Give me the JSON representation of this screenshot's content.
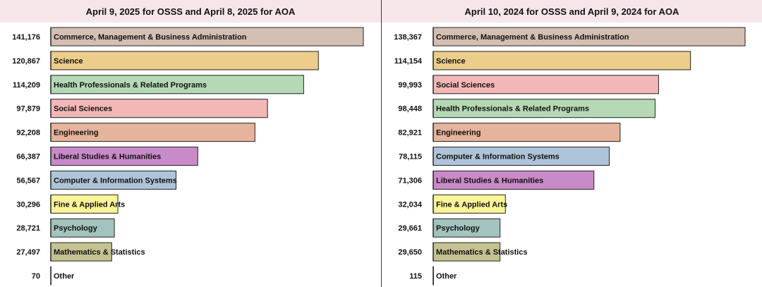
{
  "chart_data": [
    {
      "type": "bar",
      "orientation": "horizontal",
      "title": "April 9, 2025 for OSSS and April 8, 2025 for AOA",
      "categories": [
        "Commerce, Management & Business Administration",
        "Science",
        "Health Professionals & Related Programs",
        "Social Sciences",
        "Engineering",
        "Liberal Studies & Humanities",
        "Computer & Information Systems",
        "Fine & Applied Arts",
        "Psychology",
        "Mathematics & Statistics",
        "Other"
      ],
      "values": [
        141176,
        120867,
        114209,
        97879,
        92208,
        66387,
        56567,
        30296,
        28721,
        27497,
        70
      ],
      "value_labels": [
        "141,176",
        "120,867",
        "114,209",
        "97,879",
        "92,208",
        "66,387",
        "56,567",
        "30,296",
        "28,721",
        "27,497",
        "70"
      ],
      "colors": [
        "#d4bfb3",
        "#eccd8b",
        "#b6d9b5",
        "#f4b7b7",
        "#e6b39c",
        "#c98ac8",
        "#aec4d8",
        "#f9f598",
        "#a3c3bf",
        "#c4c290",
        "#cccccc"
      ],
      "xlim": [
        0,
        141176
      ],
      "grid": false
    },
    {
      "type": "bar",
      "orientation": "horizontal",
      "title": "April 10, 2024 for OSSS and April 9, 2024 for AOA",
      "categories": [
        "Commerce, Management & Business Administration",
        "Science",
        "Social Sciences",
        "Health Professionals & Related Programs",
        "Engineering",
        "Computer & Information Systems",
        "Liberal Studies & Humanities",
        "Fine & Applied Arts",
        "Psychology",
        "Mathematics & Statistics",
        "Other"
      ],
      "values": [
        138367,
        114154,
        99993,
        98448,
        82921,
        78115,
        71306,
        32034,
        29661,
        29650,
        115
      ],
      "value_labels": [
        "138,367",
        "114,154",
        "99,993",
        "98,448",
        "82,921",
        "78,115",
        "71,306",
        "32,034",
        "29,661",
        "29,650",
        "115"
      ],
      "colors": [
        "#d4bfb3",
        "#eccd8b",
        "#f4b7b7",
        "#b6d9b5",
        "#e6b39c",
        "#aec4d8",
        "#c98ac8",
        "#f9f598",
        "#a3c3bf",
        "#c4c290",
        "#cccccc"
      ],
      "xlim": [
        0,
        138367
      ],
      "grid": false
    }
  ]
}
